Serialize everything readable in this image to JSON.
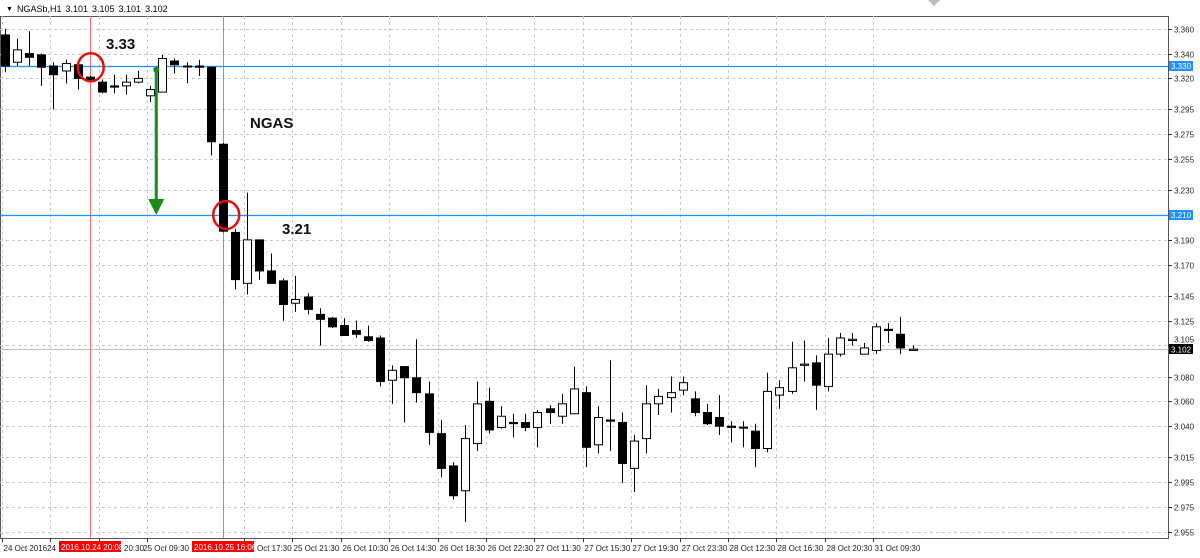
{
  "header": {
    "menu_icon": "triangle-down-icon",
    "symbol": "NGASb,H1",
    "open": "3.101",
    "high": "3.105",
    "low": "3.101",
    "close": "3.102"
  },
  "annotations": {
    "label_high": "3.33",
    "label_title": "NGAS",
    "label_low": "3.21"
  },
  "colors": {
    "bull_body": "#ffffff",
    "bear_body": "#000000",
    "hline": "#1e90ff",
    "vline": "#ff6b6b",
    "arrow": "#1a8a1a",
    "circle": "#e01010",
    "grid": "#c8c8c8",
    "bid_line": "#c0c0c0"
  },
  "chart_data": {
    "type": "candlestick",
    "symbol": "NGASb",
    "timeframe": "H1",
    "ylim": [
      2.95,
      3.365
    ],
    "grid": true,
    "y_ticks": [
      "3.360",
      "3.340",
      "3.320",
      "3.295",
      "3.275",
      "3.255",
      "3.230",
      "3.190",
      "3.170",
      "3.145",
      "3.125",
      "3.105",
      "3.080",
      "3.060",
      "3.040",
      "3.015",
      "2.995",
      "2.975",
      "2.955"
    ],
    "x_ticks": [
      "24 Oct 2016",
      "24",
      "20:30",
      "25 Oct 09:30",
      "Oct 17:30",
      "25 Oct 21:30",
      "26 Oct 10:30",
      "26 Oct 14:30",
      "26 Oct 18:30",
      "26 Oct 22:30",
      "27 Oct 11:30",
      "27 Oct 15:30",
      "27 Oct 19:30",
      "27 Oct 23:30",
      "28 Oct 12:30",
      "28 Oct 16:30",
      "28 Oct 20:30",
      "31 Oct 09:30"
    ],
    "x_tick_candle_index": [
      0,
      4,
      8,
      12,
      20,
      24,
      28,
      32,
      36,
      40,
      44,
      48,
      52,
      56,
      60,
      64,
      68,
      72
    ],
    "ohlc": [
      [
        3.355,
        3.36,
        3.325,
        3.33
      ],
      [
        3.333,
        3.352,
        3.33,
        3.343
      ],
      [
        3.34,
        3.358,
        3.33,
        3.337
      ],
      [
        3.339,
        3.34,
        3.314,
        3.329
      ],
      [
        3.33,
        3.333,
        3.295,
        3.323
      ],
      [
        3.326,
        3.335,
        3.316,
        3.332
      ],
      [
        3.331,
        3.332,
        3.311,
        3.32
      ],
      [
        3.321,
        3.322,
        3.318,
        3.319
      ],
      [
        3.317,
        3.319,
        3.308,
        3.309
      ],
      [
        3.314,
        3.323,
        3.308,
        3.313
      ],
      [
        3.314,
        3.323,
        3.307,
        3.317
      ],
      [
        3.317,
        3.326,
        3.316,
        3.32
      ],
      [
        3.306,
        3.314,
        3.301,
        3.311
      ],
      [
        3.309,
        3.339,
        3.309,
        3.336
      ],
      [
        3.334,
        3.336,
        3.324,
        3.331
      ],
      [
        3.33,
        3.333,
        3.316,
        3.3295
      ],
      [
        3.33,
        3.335,
        3.322,
        3.329
      ],
      [
        3.329,
        3.33,
        3.258,
        3.269
      ],
      [
        3.267,
        3.268,
        3.196,
        3.197
      ],
      [
        3.196,
        3.199,
        3.15,
        3.158
      ],
      [
        3.155,
        3.228,
        3.146,
        3.19
      ],
      [
        3.19,
        3.19,
        3.158,
        3.165
      ],
      [
        3.165,
        3.179,
        3.155,
        3.155
      ],
      [
        3.157,
        3.159,
        3.125,
        3.138
      ],
      [
        3.139,
        3.161,
        3.132,
        3.142
      ],
      [
        3.144,
        3.147,
        3.13,
        3.134
      ],
      [
        3.13,
        3.135,
        3.105,
        3.126
      ],
      [
        3.127,
        3.128,
        3.119,
        3.12
      ],
      [
        3.121,
        3.127,
        3.113,
        3.113
      ],
      [
        3.117,
        3.125,
        3.111,
        3.114
      ],
      [
        3.112,
        3.121,
        3.108,
        3.109
      ],
      [
        3.111,
        3.113,
        3.072,
        3.076
      ],
      [
        3.077,
        3.089,
        3.058,
        3.085
      ],
      [
        3.088,
        3.088,
        3.043,
        3.079
      ],
      [
        3.079,
        3.11,
        3.059,
        3.067
      ],
      [
        3.066,
        3.076,
        3.025,
        3.035
      ],
      [
        3.034,
        3.045,
        2.999,
        3.006
      ],
      [
        3.008,
        3.011,
        2.981,
        2.984
      ],
      [
        2.988,
        3.041,
        2.963,
        3.03
      ],
      [
        3.026,
        3.076,
        3.02,
        3.058
      ],
      [
        3.06,
        3.071,
        3.034,
        3.037
      ],
      [
        3.039,
        3.056,
        3.038,
        3.048
      ],
      [
        3.043,
        3.05,
        3.031,
        3.042
      ],
      [
        3.043,
        3.05,
        3.036,
        3.039
      ],
      [
        3.039,
        3.053,
        3.023,
        3.051
      ],
      [
        3.054,
        3.057,
        3.042,
        3.051
      ],
      [
        3.048,
        3.066,
        3.042,
        3.058
      ],
      [
        3.05,
        3.088,
        3.05,
        3.07
      ],
      [
        3.067,
        3.072,
        3.007,
        3.023
      ],
      [
        3.025,
        3.056,
        3.018,
        3.047
      ],
      [
        3.045,
        3.093,
        3.02,
        3.044
      ],
      [
        3.043,
        3.051,
        2.994,
        3.01
      ],
      [
        3.006,
        3.033,
        2.987,
        3.028
      ],
      [
        3.03,
        3.073,
        3.018,
        3.058
      ],
      [
        3.058,
        3.07,
        3.049,
        3.064
      ],
      [
        3.063,
        3.08,
        3.051,
        3.067
      ],
      [
        3.069,
        3.08,
        3.065,
        3.075
      ],
      [
        3.062,
        3.068,
        3.048,
        3.051
      ],
      [
        3.051,
        3.058,
        3.041,
        3.042
      ],
      [
        3.047,
        3.065,
        3.033,
        3.04
      ],
      [
        3.04,
        3.044,
        3.027,
        3.039
      ],
      [
        3.0392,
        3.044,
        3.023,
        3.039
      ],
      [
        3.036,
        3.042,
        3.007,
        3.022
      ],
      [
        3.022,
        3.083,
        3.019,
        3.068
      ],
      [
        3.065,
        3.077,
        3.054,
        3.071
      ],
      [
        3.068,
        3.108,
        3.066,
        3.087
      ],
      [
        3.089,
        3.109,
        3.076,
        3.09
      ],
      [
        3.091,
        3.097,
        3.053,
        3.073
      ],
      [
        3.072,
        3.111,
        3.068,
        3.098
      ],
      [
        3.098,
        3.115,
        3.096,
        3.111
      ],
      [
        3.109,
        3.115,
        3.105,
        3.11
      ],
      [
        3.098,
        3.107,
        3.098,
        3.103
      ],
      [
        3.101,
        3.123,
        3.098,
        3.12
      ],
      [
        3.118,
        3.123,
        3.107,
        3.117
      ],
      [
        3.114,
        3.128,
        3.098,
        3.103
      ],
      [
        3.101,
        3.105,
        3.101,
        3.102
      ]
    ],
    "horizontal_lines": [
      {
        "price": 3.33,
        "label": "3.330"
      },
      {
        "price": 3.21,
        "label": "3.210"
      }
    ],
    "bid_line": {
      "price": 3.102,
      "label": "3.102"
    },
    "vertical_lines": [
      {
        "candle_index": 7,
        "label": "2016.10.24 20:08"
      },
      {
        "candle_index": 18,
        "label": "2016.10.25 16:06"
      }
    ],
    "arrow": {
      "candle_index": 12.5,
      "from_price": 3.327,
      "to_price": 3.21
    },
    "circles": [
      {
        "candle_index": 7,
        "price": 3.329
      },
      {
        "candle_index": 18.2,
        "price": 3.21
      }
    ]
  }
}
